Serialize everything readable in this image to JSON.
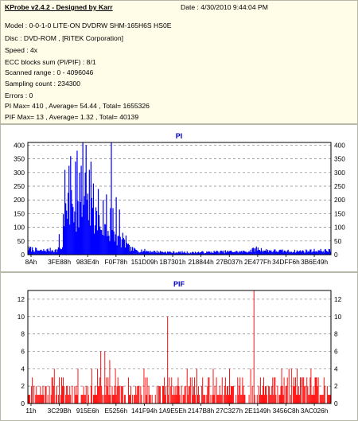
{
  "app": {
    "title": "KProbe v2.4.2 - Designed by Karr",
    "date": "Date : 4/30/2010 9:44:04 PM"
  },
  "info": [
    "Model : 0-0-1-0 LITE-ON DVDRW SHM-165H6S HS0E",
    "Disc : DVD-ROM ,  [RiTEK Corporation]",
    "Speed : 4x",
    "ECC blocks sum (PI/PIF) : 8/1",
    "Scanned range : 0 - 4096046",
    "Sampling count : 234300",
    "Errors : 0",
    "PI Max= 410 , Average= 54.44 , Total= 1655326",
    "PIF Max= 13 , Average= 1.32 , Total= 40139"
  ],
  "colors": {
    "pi_series": "#0000ff",
    "pif_series": "#ff0000",
    "panel_title": "#0000c8",
    "info_background": "#fffde8"
  },
  "chart_data": [
    {
      "type": "area",
      "title": "PI",
      "series": [
        {
          "values": []
        }
      ],
      "x_tick_labels": [
        "8Ah",
        "3FE88h",
        "983E4h",
        "F0F78h",
        "151D09h",
        "1B7301h",
        "218844h",
        "27B037h",
        "2E477Fh",
        "34DFF6h",
        "3B6E49h"
      ],
      "y_ticks": [
        0,
        50,
        100,
        150,
        200,
        250,
        300,
        350,
        400
      ],
      "ylim": [
        0,
        410
      ],
      "grid": true,
      "secondary_y_axis": true,
      "profile": [
        [
          0,
          25
        ],
        [
          7,
          22
        ],
        [
          14,
          15
        ],
        [
          21,
          18
        ],
        [
          28,
          20
        ],
        [
          35,
          18
        ],
        [
          42,
          30
        ],
        [
          43,
          140
        ],
        [
          48,
          170
        ],
        [
          55,
          200
        ],
        [
          62,
          175
        ],
        [
          69,
          185
        ],
        [
          76,
          170
        ],
        [
          83,
          150
        ],
        [
          90,
          120
        ],
        [
          97,
          100
        ],
        [
          104,
          80
        ],
        [
          111,
          60
        ],
        [
          118,
          45
        ],
        [
          125,
          25
        ],
        [
          132,
          18
        ],
        [
          140,
          17
        ],
        [
          150,
          14
        ],
        [
          160,
          12
        ],
        [
          170,
          11
        ],
        [
          180,
          10
        ],
        [
          190,
          10
        ],
        [
          200,
          9
        ],
        [
          210,
          10
        ],
        [
          220,
          10
        ],
        [
          230,
          12
        ],
        [
          240,
          12
        ],
        [
          250,
          13
        ],
        [
          260,
          12
        ],
        [
          270,
          14
        ],
        [
          280,
          25
        ],
        [
          290,
          18
        ],
        [
          300,
          16
        ],
        [
          310,
          15
        ],
        [
          320,
          14
        ],
        [
          330,
          14
        ],
        [
          340,
          15
        ],
        [
          350,
          17
        ],
        [
          360,
          16
        ],
        [
          371,
          17
        ]
      ],
      "spikes": [
        [
          38,
          75
        ],
        [
          45,
          310
        ],
        [
          50,
          325
        ],
        [
          52,
          360
        ],
        [
          58,
          340
        ],
        [
          60,
          380
        ],
        [
          63,
          300
        ],
        [
          65,
          325
        ],
        [
          67,
          410
        ],
        [
          70,
          300
        ],
        [
          71,
          400
        ],
        [
          75,
          310
        ],
        [
          77,
          340
        ],
        [
          80,
          260
        ],
        [
          86,
          240
        ],
        [
          92,
          200
        ],
        [
          96,
          220
        ],
        [
          101,
          170
        ],
        [
          102,
          410
        ],
        [
          104,
          170
        ],
        [
          108,
          210
        ],
        [
          112,
          165
        ],
        [
          116,
          80
        ],
        [
          120,
          70
        ]
      ]
    },
    {
      "type": "bar",
      "title": "PIF",
      "series": [
        {
          "values": []
        }
      ],
      "x_tick_labels": [
        "11h",
        "3C29Bh",
        "915E6h",
        "E5256h",
        "141F94h",
        "1A9E5Eh",
        "2147B8h",
        "27C327h",
        "2E1149h",
        "3456C8h",
        "3AC026h"
      ],
      "y_ticks": [
        0,
        2,
        4,
        6,
        8,
        10,
        12
      ],
      "ylim": [
        0,
        13
      ],
      "grid": true,
      "secondary_y_axis": true,
      "spikes": [
        [
          89,
          6
        ],
        [
          94,
          6
        ],
        [
          100,
          5
        ],
        [
          107,
          4
        ],
        [
          171,
          10
        ],
        [
          277,
          13
        ],
        [
          320,
          4
        ],
        [
          335,
          3
        ]
      ]
    }
  ]
}
